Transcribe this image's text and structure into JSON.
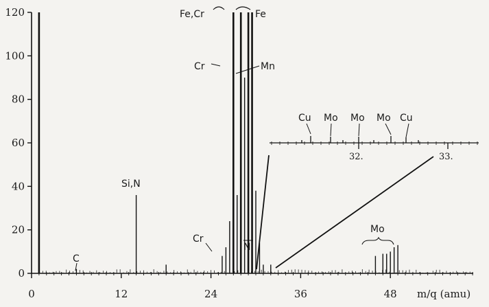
{
  "chart_data": {
    "type": "bar",
    "xlabel": "m/q (amu)",
    "ylabel": "",
    "xlim": [
      0,
      60
    ],
    "ylim": [
      0,
      120
    ],
    "x_ticks": [
      "0",
      "12",
      "24",
      "36",
      "48"
    ],
    "y_ticks": [
      "0",
      "20",
      "40",
      "60",
      "80",
      "100",
      "120"
    ],
    "peaks": [
      {
        "x": 1.0,
        "y": 120
      },
      {
        "x": 6.0,
        "y": 2
      },
      {
        "x": 14.0,
        "y": 36
      },
      {
        "x": 18.0,
        "y": 4
      },
      {
        "x": 25.5,
        "y": 8
      },
      {
        "x": 26.0,
        "y": 12
      },
      {
        "x": 26.5,
        "y": 24
      },
      {
        "x": 27.0,
        "y": 120
      },
      {
        "x": 27.5,
        "y": 36
      },
      {
        "x": 28.0,
        "y": 120
      },
      {
        "x": 28.5,
        "y": 90
      },
      {
        "x": 29.0,
        "y": 120
      },
      {
        "x": 29.5,
        "y": 120
      },
      {
        "x": 30.0,
        "y": 38
      },
      {
        "x": 30.5,
        "y": 14
      },
      {
        "x": 31.0,
        "y": 4
      },
      {
        "x": 32.0,
        "y": 4
      },
      {
        "x": 46.0,
        "y": 8
      },
      {
        "x": 47.0,
        "y": 9
      },
      {
        "x": 47.5,
        "y": 9
      },
      {
        "x": 48.0,
        "y": 10
      },
      {
        "x": 48.5,
        "y": 12
      },
      {
        "x": 49.0,
        "y": 13
      }
    ],
    "annotations": [
      "C",
      "Si,N",
      "Cr",
      "Fe,Cr",
      "Fe",
      "Cr",
      "Mn",
      "Ni",
      "Mo"
    ],
    "inset": {
      "tick_labels": [
        "32.",
        "33."
      ],
      "annotations": [
        "Cu",
        "Mo",
        "Mo",
        "Mo",
        "Cu"
      ]
    }
  }
}
